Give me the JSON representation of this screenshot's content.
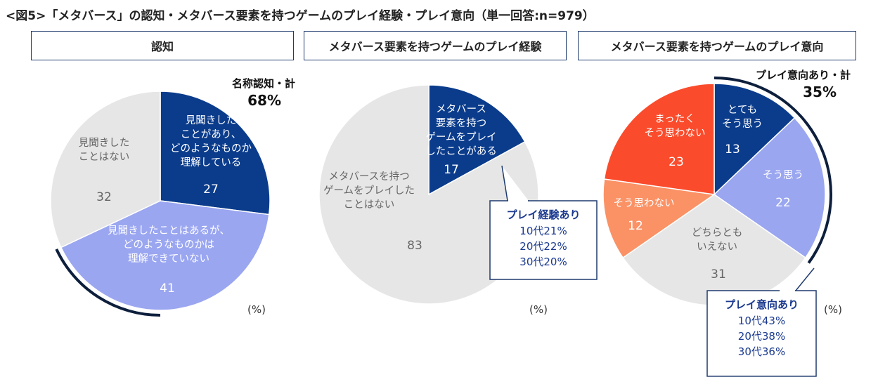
{
  "title": "<図5>「メタバース」の認知・メタバース要素を持つゲームのプレイ経験・プレイ意向（単一回答:n=979）",
  "colors": {
    "navy": "#0b3c8c",
    "lavender": "#9aa6f0",
    "grey": "#e6e6e6",
    "orange_red": "#fa4c2c",
    "salmon": "#fa9266",
    "border": "#1f3a6e"
  },
  "panels": [
    {
      "header": "認知"
    },
    {
      "header": "メタバース要素を持つゲームのプレイ経験"
    },
    {
      "header": "メタバース要素を持つゲームのプレイ意向"
    }
  ],
  "chart_data": [
    {
      "type": "pie",
      "title": "認知",
      "unit": "(%)",
      "slices": [
        {
          "label": "見聞きしたことがあり、どのようなものか理解している",
          "lines": [
            "見聞きした",
            "ことがあり、",
            "どのようなものか",
            "理解している"
          ],
          "value": 27,
          "color": "#0b3c8c"
        },
        {
          "label": "見聞きしたことはあるが、どのようなものかは理解できていない",
          "lines": [
            "見聞きしたことはあるが、",
            "どのようなものかは",
            "理解できていない"
          ],
          "value": 41,
          "color": "#9aa6f0"
        },
        {
          "label": "見聞きしたことはない",
          "lines": [
            "見聞きした",
            "ことはない"
          ],
          "value": 32,
          "color": "#e6e6e6"
        }
      ],
      "summary": {
        "label": "名称認知・計",
        "value": "68%"
      }
    },
    {
      "type": "pie",
      "title": "メタバース要素を持つゲームのプレイ経験",
      "unit": "(%)",
      "slices": [
        {
          "label": "メタバース要素を持つゲームをプレイしたことがある",
          "lines": [
            "メタバース",
            "要素を持つ",
            "ゲームをプレイ",
            "したことがある"
          ],
          "value": 17,
          "color": "#0b3c8c"
        },
        {
          "label": "メタバースを持つゲームをプレイしたことはない",
          "lines": [
            "メタバースを持つ",
            "ゲームをプレイした",
            "ことはない"
          ],
          "value": 83,
          "color": "#e6e6e6"
        }
      ],
      "callout": {
        "title": "プレイ経験あり",
        "lines": [
          "10代21%",
          "20代22%",
          "30代20%"
        ]
      }
    },
    {
      "type": "pie",
      "title": "メタバース要素を持つゲームのプレイ意向",
      "unit": "(%)",
      "slices": [
        {
          "label": "とてもそう思う",
          "lines": [
            "とても",
            "そう思う"
          ],
          "value": 13,
          "color": "#0b3c8c"
        },
        {
          "label": "そう思う",
          "lines": [
            "そう思う"
          ],
          "value": 22,
          "color": "#9aa6f0"
        },
        {
          "label": "どちらともいえない",
          "lines": [
            "どちらとも",
            "いえない"
          ],
          "value": 31,
          "color": "#e6e6e6"
        },
        {
          "label": "そう思わない",
          "lines": [
            "そう思わない"
          ],
          "value": 12,
          "color": "#fa9266"
        },
        {
          "label": "まったくそう思わない",
          "lines": [
            "まったく",
            "そう思わない"
          ],
          "value": 23,
          "color": "#fa4c2c"
        }
      ],
      "summary": {
        "label": "プレイ意向あり・計",
        "value": "35%"
      },
      "callout": {
        "title": "プレイ意向あり",
        "lines": [
          "10代43%",
          "20代38%",
          "30代36%"
        ]
      }
    }
  ]
}
